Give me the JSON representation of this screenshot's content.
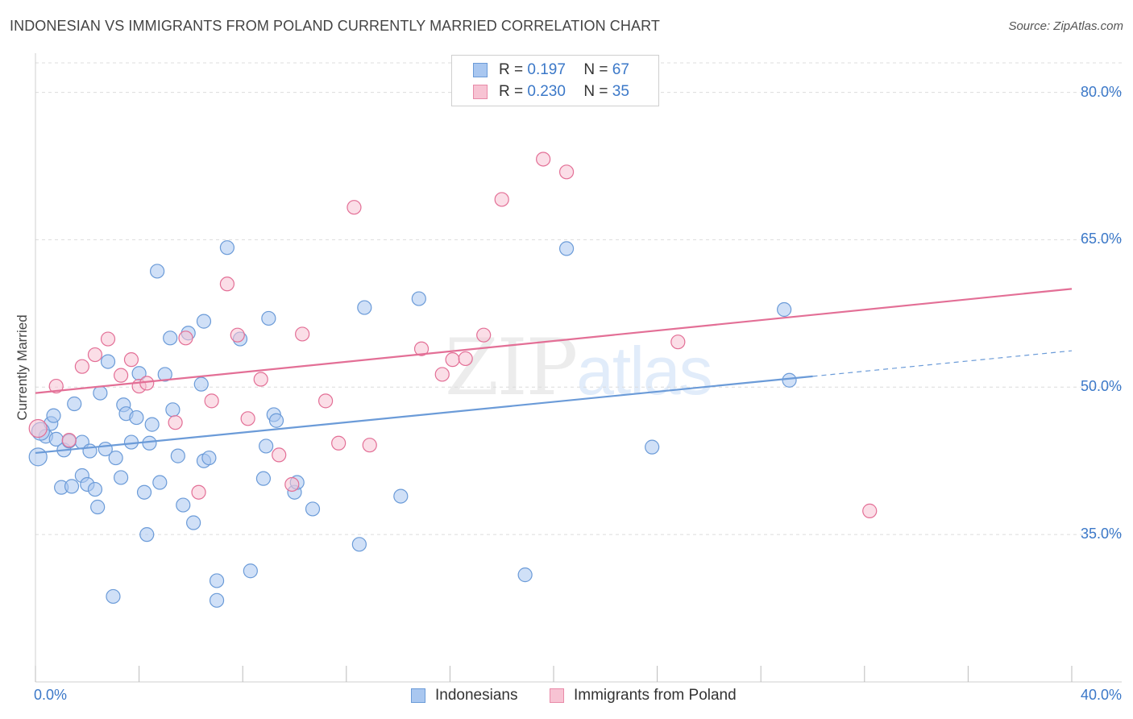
{
  "header": {
    "title": "INDONESIAN VS IMMIGRANTS FROM POLAND CURRENTLY MARRIED CORRELATION CHART",
    "source": "Source: ZipAtlas.com"
  },
  "watermark": {
    "zip": "ZIP",
    "atlas": "atlas"
  },
  "legend": {
    "rows": [
      {
        "r_label": "R =",
        "r_value": "0.197",
        "n_label": "N =",
        "n_value": "67",
        "color": "#a9c7f0",
        "border": "#6b9bd8"
      },
      {
        "r_label": "R =",
        "r_value": "0.230",
        "n_label": "N =",
        "n_value": "35",
        "color": "#f7c3d3",
        "border": "#e88aa8"
      }
    ]
  },
  "bottom_legend": {
    "items": [
      {
        "label": "Indonesians",
        "color": "#a9c7f0",
        "border": "#6b9bd8"
      },
      {
        "label": "Immigrants from Poland",
        "color": "#f7c3d3",
        "border": "#e88aa8"
      }
    ]
  },
  "chart_data": {
    "type": "scatter",
    "title": "INDONESIAN VS IMMIGRANTS FROM POLAND CURRENTLY MARRIED CORRELATION CHART",
    "xlabel": "",
    "ylabel": "Currently Married",
    "xlim": [
      0,
      40
    ],
    "ylim": [
      20,
      83
    ],
    "x_tick_labels": [
      "0.0%",
      "40.0%"
    ],
    "y_ticks": [
      35,
      50,
      65,
      80
    ],
    "y_tick_labels": [
      "35.0%",
      "50.0%",
      "65.0%",
      "80.0%"
    ],
    "grid": true,
    "legend_position": "top-center",
    "series": [
      {
        "name": "Indonesians",
        "color": "#6b9bd8",
        "fill": "#a9c7f0",
        "trend": {
          "x": [
            0,
            30
          ],
          "y": [
            43.3,
            51.1
          ],
          "dash_to": [
            40,
            53.7
          ]
        },
        "points": [
          [
            0.1,
            42.9
          ],
          [
            0.4,
            45.0
          ],
          [
            0.6,
            46.3
          ],
          [
            0.7,
            47.1
          ],
          [
            0.8,
            44.7
          ],
          [
            1.0,
            39.8
          ],
          [
            1.1,
            43.6
          ],
          [
            1.3,
            44.5
          ],
          [
            1.4,
            39.9
          ],
          [
            1.5,
            48.3
          ],
          [
            1.8,
            41.0
          ],
          [
            1.8,
            44.4
          ],
          [
            2.0,
            40.1
          ],
          [
            2.1,
            43.5
          ],
          [
            2.3,
            39.6
          ],
          [
            2.4,
            37.8
          ],
          [
            2.5,
            49.4
          ],
          [
            2.7,
            43.7
          ],
          [
            2.8,
            52.6
          ],
          [
            3.0,
            28.7
          ],
          [
            3.1,
            42.8
          ],
          [
            3.3,
            40.8
          ],
          [
            3.4,
            48.2
          ],
          [
            3.5,
            47.3
          ],
          [
            3.7,
            44.4
          ],
          [
            3.9,
            46.9
          ],
          [
            4.0,
            51.4
          ],
          [
            4.2,
            39.3
          ],
          [
            4.3,
            35.0
          ],
          [
            4.4,
            44.3
          ],
          [
            4.5,
            46.2
          ],
          [
            4.7,
            61.8
          ],
          [
            4.8,
            40.3
          ],
          [
            5.0,
            51.3
          ],
          [
            5.2,
            55.0
          ],
          [
            5.3,
            47.7
          ],
          [
            5.5,
            43.0
          ],
          [
            5.7,
            38.0
          ],
          [
            5.9,
            55.5
          ],
          [
            6.1,
            36.2
          ],
          [
            6.4,
            50.3
          ],
          [
            6.5,
            56.7
          ],
          [
            6.5,
            42.5
          ],
          [
            6.7,
            42.8
          ],
          [
            7.0,
            30.3
          ],
          [
            7.0,
            28.3
          ],
          [
            7.4,
            64.2
          ],
          [
            7.9,
            54.9
          ],
          [
            8.3,
            31.3
          ],
          [
            8.8,
            40.7
          ],
          [
            8.9,
            44.0
          ],
          [
            9.0,
            57.0
          ],
          [
            9.2,
            47.2
          ],
          [
            9.3,
            46.6
          ],
          [
            10.0,
            39.3
          ],
          [
            10.1,
            40.3
          ],
          [
            10.7,
            37.6
          ],
          [
            12.5,
            34.0
          ],
          [
            12.7,
            58.1
          ],
          [
            14.1,
            38.9
          ],
          [
            14.8,
            59.0
          ],
          [
            18.9,
            30.9
          ],
          [
            20.5,
            64.1
          ],
          [
            23.8,
            43.9
          ],
          [
            28.9,
            57.9
          ],
          [
            29.1,
            50.7
          ],
          [
            0.2,
            45.5
          ]
        ]
      },
      {
        "name": "Immigrants from Poland",
        "color": "#e36f96",
        "fill": "#f7c3d3",
        "trend": {
          "x": [
            0,
            40
          ],
          "y": [
            49.4,
            60.0
          ]
        },
        "points": [
          [
            0.1,
            45.8
          ],
          [
            0.8,
            50.1
          ],
          [
            1.3,
            44.6
          ],
          [
            1.8,
            52.1
          ],
          [
            2.3,
            53.3
          ],
          [
            2.8,
            54.9
          ],
          [
            3.3,
            51.2
          ],
          [
            3.7,
            52.8
          ],
          [
            4.0,
            50.1
          ],
          [
            4.3,
            50.4
          ],
          [
            5.4,
            46.4
          ],
          [
            5.8,
            55.0
          ],
          [
            6.3,
            39.3
          ],
          [
            6.8,
            48.6
          ],
          [
            7.4,
            60.5
          ],
          [
            7.8,
            55.3
          ],
          [
            8.2,
            46.8
          ],
          [
            8.7,
            50.8
          ],
          [
            9.4,
            43.1
          ],
          [
            9.9,
            40.1
          ],
          [
            10.3,
            55.4
          ],
          [
            11.2,
            48.6
          ],
          [
            11.7,
            44.3
          ],
          [
            12.3,
            68.3
          ],
          [
            12.9,
            44.1
          ],
          [
            14.9,
            53.9
          ],
          [
            15.7,
            51.3
          ],
          [
            16.1,
            52.8
          ],
          [
            16.6,
            52.9
          ],
          [
            17.3,
            55.3
          ],
          [
            18.0,
            69.1
          ],
          [
            19.6,
            73.2
          ],
          [
            20.5,
            71.9
          ],
          [
            24.8,
            54.6
          ],
          [
            32.2,
            37.4
          ]
        ]
      }
    ]
  }
}
